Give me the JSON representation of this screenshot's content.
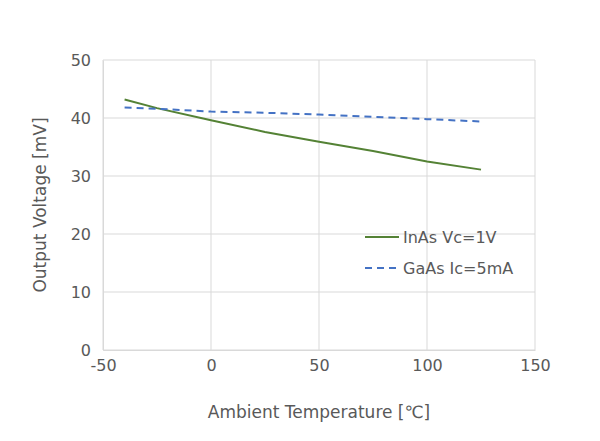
{
  "chart_data": {
    "type": "line",
    "x_label": "Ambient Temperature [℃]",
    "y_label": "Output Voltage [mV]",
    "x": [
      -40,
      -25,
      0,
      25,
      50,
      75,
      100,
      125
    ],
    "series": [
      {
        "name": "InAs Vc=1V",
        "color": "#548235",
        "line_style": "solid",
        "values": [
          43.2,
          41.7,
          39.6,
          37.6,
          35.9,
          34.3,
          32.5,
          31.1
        ]
      },
      {
        "name": "GaAs Ic=5mA",
        "color": "#4472c4",
        "line_style": "dashed",
        "values": [
          41.8,
          41.6,
          41.1,
          40.9,
          40.6,
          40.2,
          39.8,
          39.4
        ]
      }
    ],
    "xlim": [
      -50,
      150
    ],
    "xticks": [
      -50,
      0,
      50,
      100,
      150
    ],
    "ylim": [
      0,
      50
    ],
    "yticks": [
      0,
      10,
      20,
      30,
      40,
      50
    ],
    "grid": true,
    "legend": "right"
  }
}
